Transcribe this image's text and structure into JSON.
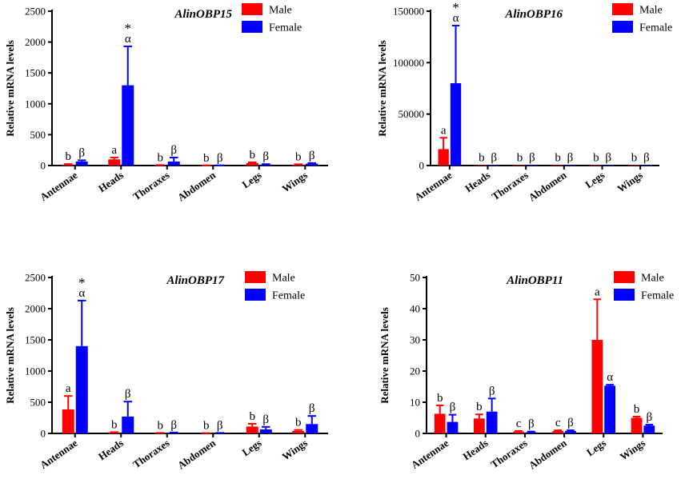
{
  "chart_data": [
    {
      "type": "bar",
      "title": "AlinOBP15",
      "ylabel": "Relative mRNA levels",
      "categories": [
        "Antennae",
        "Heads",
        "Thoraxes",
        "Abdomen",
        "Legs",
        "Wings"
      ],
      "ylim": [
        0,
        2500
      ],
      "yticks": [
        0,
        500,
        1000,
        1500,
        2000,
        2500
      ],
      "series": [
        {
          "name": "Male",
          "color": "#ff0000",
          "values": [
            15,
            100,
            5,
            2,
            40,
            15
          ],
          "errors": [
            8,
            30,
            3,
            1,
            12,
            6
          ],
          "labels": [
            "b",
            "a",
            "b",
            "b",
            "b",
            "b"
          ]
        },
        {
          "name": "Female",
          "color": "#0000ff",
          "values": [
            65,
            1300,
            65,
            2,
            15,
            30
          ],
          "errors": [
            20,
            630,
            65,
            1,
            8,
            10
          ],
          "labels": [
            "β",
            "α",
            "β",
            "β",
            "β",
            "β"
          ]
        }
      ],
      "star_category": "Heads",
      "legend": [
        "Male",
        "Female"
      ]
    },
    {
      "type": "bar",
      "title": "AlinOBP16",
      "ylabel": "Relative mRNA levels",
      "categories": [
        "Antennae",
        "Heads",
        "Thoraxes",
        "Abdomen",
        "Legs",
        "Wings"
      ],
      "ylim": [
        0,
        150000
      ],
      "yticks": [
        0,
        50000,
        100000,
        150000
      ],
      "series": [
        {
          "name": "Male",
          "color": "#ff0000",
          "values": [
            16000,
            100,
            100,
            100,
            100,
            100
          ],
          "errors": [
            11000,
            0,
            0,
            0,
            0,
            0
          ],
          "labels": [
            "a",
            "b",
            "b",
            "b",
            "b",
            "b"
          ]
        },
        {
          "name": "Female",
          "color": "#0000ff",
          "values": [
            80000,
            100,
            100,
            100,
            100,
            100
          ],
          "errors": [
            56000,
            0,
            0,
            0,
            0,
            0
          ],
          "labels": [
            "α",
            "β",
            "β",
            "β",
            "β",
            "β"
          ]
        }
      ],
      "star_category": "Antennae",
      "legend": [
        "Male",
        "Female"
      ]
    },
    {
      "type": "bar",
      "title": "AlinOBP17",
      "ylabel": "Relative mRNA levels",
      "categories": [
        "Antennae",
        "Heads",
        "Thoraxes",
        "Abdomen",
        "Legs",
        "Wings"
      ],
      "ylim": [
        0,
        2500
      ],
      "yticks": [
        0,
        500,
        1000,
        1500,
        2000,
        2500
      ],
      "series": [
        {
          "name": "Male",
          "color": "#ff0000",
          "values": [
            385,
            15,
            5,
            3,
            110,
            40
          ],
          "errors": [
            215,
            5,
            3,
            2,
            45,
            15
          ],
          "labels": [
            "a",
            "b",
            "b",
            "b",
            "b",
            "b"
          ]
        },
        {
          "name": "Female",
          "color": "#0000ff",
          "values": [
            1400,
            270,
            10,
            5,
            65,
            150
          ],
          "errors": [
            730,
            240,
            5,
            3,
            40,
            130
          ],
          "labels": [
            "α",
            "β",
            "β",
            "β",
            "β",
            "β"
          ]
        }
      ],
      "star_category": "Antennae",
      "legend": [
        "Male",
        "Female"
      ]
    },
    {
      "type": "bar",
      "title": "AlinOBP11",
      "ylabel": "Relative mRNA levels",
      "categories": [
        "Antennae",
        "Heads",
        "Thoraxes",
        "Abdomen",
        "Legs",
        "Wings"
      ],
      "ylim": [
        0,
        50
      ],
      "yticks": [
        0,
        10,
        20,
        30,
        40,
        50
      ],
      "series": [
        {
          "name": "Male",
          "color": "#ff0000",
          "values": [
            6.3,
            4.8,
            0.6,
            0.8,
            30,
            5
          ],
          "errors": [
            2.7,
            1.3,
            0.2,
            0.2,
            13,
            0.4
          ],
          "labels": [
            "b",
            "b",
            "c",
            "c",
            "a",
            "b"
          ]
        },
        {
          "name": "Female",
          "color": "#0000ff",
          "values": [
            3.7,
            7,
            0.4,
            0.8,
            15.3,
            2.5
          ],
          "errors": [
            2.3,
            4.2,
            0.2,
            0.2,
            0.3,
            0.3
          ],
          "labels": [
            "β",
            "β",
            "β",
            "β",
            "α",
            "β"
          ]
        }
      ],
      "star_category": null,
      "legend": [
        "Male",
        "Female"
      ]
    }
  ]
}
